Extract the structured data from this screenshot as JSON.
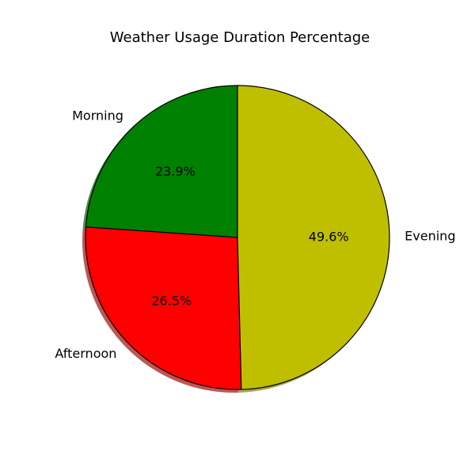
{
  "chart_data": {
    "type": "pie",
    "title": "Weather Usage Duration Percentage",
    "slices": [
      {
        "label": "Morning",
        "value": 23.9,
        "pct_label": "23.9%",
        "color": "#008000"
      },
      {
        "label": "Afternoon",
        "value": 26.5,
        "pct_label": "26.5%",
        "color": "#ff0000"
      },
      {
        "label": "Evening",
        "value": 49.6,
        "pct_label": "49.6%",
        "color": "#bfbf00"
      }
    ],
    "start_angle_deg": 90,
    "direction": "counterclockwise",
    "shadow": true,
    "edge_color": "#000000"
  }
}
